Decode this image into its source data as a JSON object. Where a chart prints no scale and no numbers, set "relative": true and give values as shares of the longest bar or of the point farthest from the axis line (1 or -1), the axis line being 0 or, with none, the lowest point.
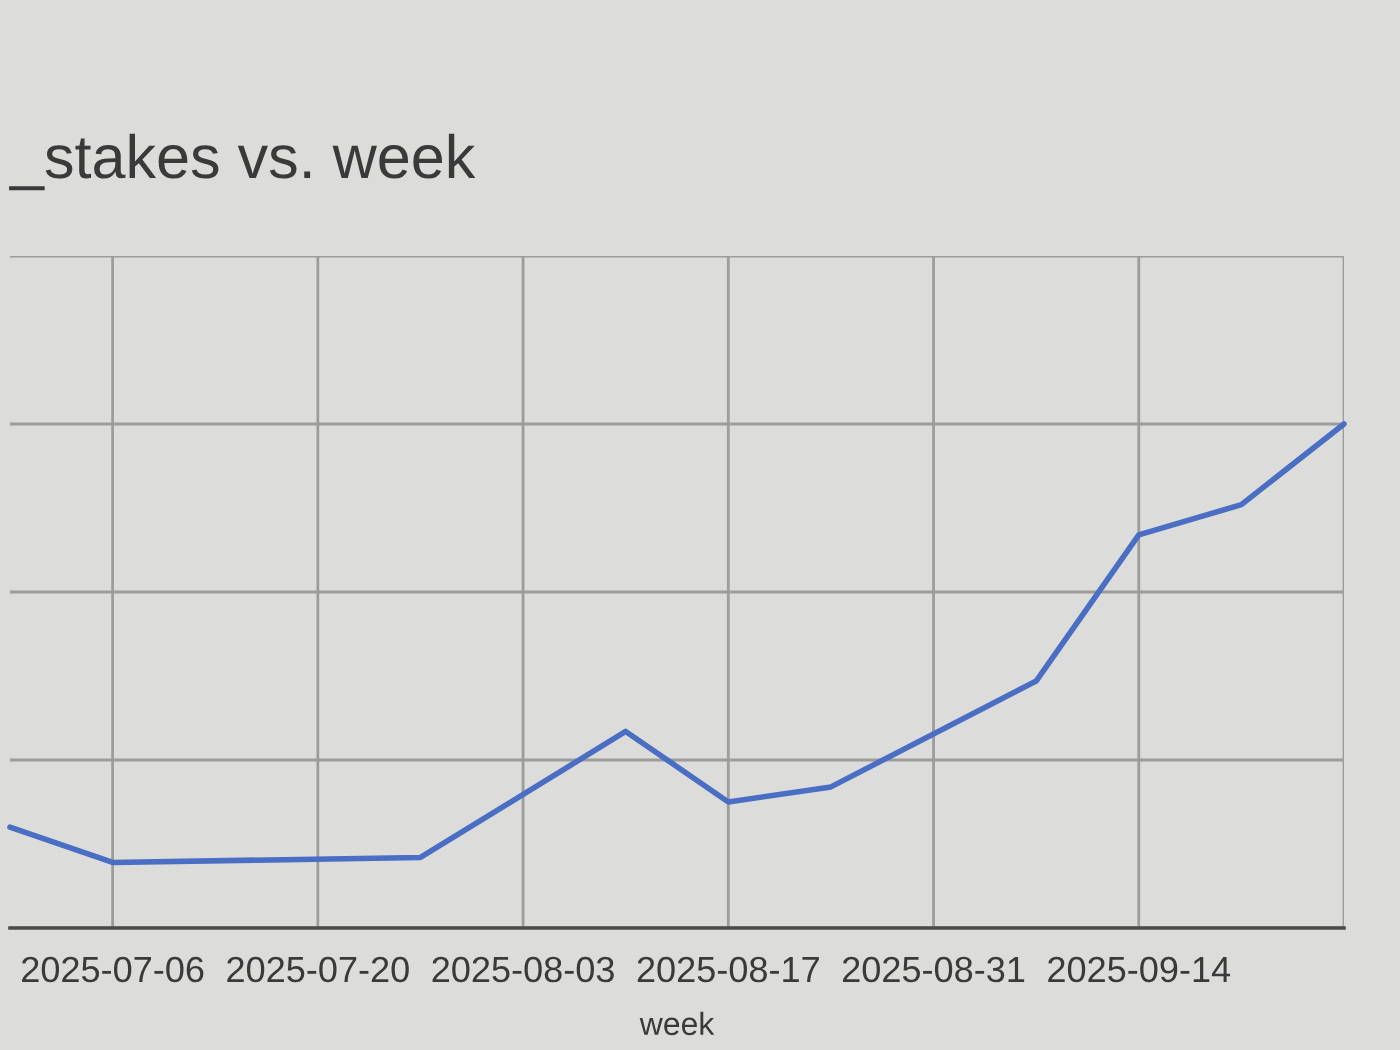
{
  "chart_data": {
    "type": "line",
    "title": "_stakes vs. week",
    "xlabel": "week",
    "relative": true,
    "x": [
      "2025-06-29",
      "2025-07-06",
      "2025-07-27",
      "2025-08-10",
      "2025-08-17",
      "2025-08-24",
      "2025-09-07",
      "2025-09-14",
      "2025-09-21",
      "2025-09-28"
    ],
    "series": [
      {
        "color": "#4a6ec4",
        "values": [
          0.2,
          0.13,
          0.14,
          0.39,
          0.25,
          0.28,
          0.49,
          0.78,
          0.84,
          1
        ]
      }
    ],
    "xlim": [
      "2025-06-29",
      "2025-09-28"
    ],
    "xticks": [
      "2025-07-06",
      "2025-07-20",
      "2025-08-03",
      "2025-08-17",
      "2025-08-31",
      "2025-09-14",
      {
        "value": "2025-09-28",
        "label": null
      }
    ],
    "grid": true,
    "tick_labels": "x",
    "line_style": "solid"
  }
}
